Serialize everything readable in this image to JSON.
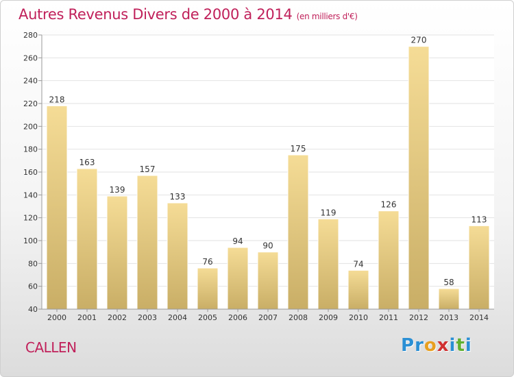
{
  "title": "Autres Revenus Divers de 2000 à 2014",
  "subtitle": "(en milliers d'€)",
  "commune": "CALLEN",
  "brand": {
    "letters": [
      "P",
      "r",
      "o",
      "x",
      "i",
      "t",
      "i"
    ],
    "colors": [
      "#2a8fd4",
      "#2a8fd4",
      "#e8a020",
      "#d03030",
      "#2a8fd4",
      "#60b030",
      "#2a8fd4"
    ]
  },
  "colors": {
    "title": "#c0205a",
    "bar_top": "#f5dc96",
    "bar_bottom": "#c9ae66",
    "grid": "#e2e2e2"
  },
  "chart_data": {
    "type": "bar",
    "title": "Autres Revenus Divers de 2000 à 2014",
    "categories": [
      "2000",
      "2001",
      "2002",
      "2003",
      "2004",
      "2005",
      "2006",
      "2007",
      "2008",
      "2009",
      "2010",
      "2011",
      "2012",
      "2013",
      "2014"
    ],
    "values": [
      218,
      163,
      139,
      157,
      133,
      76,
      94,
      90,
      175,
      119,
      74,
      126,
      270,
      58,
      113
    ],
    "ylim": [
      40,
      280
    ],
    "yticks": [
      40,
      60,
      80,
      100,
      120,
      140,
      160,
      180,
      200,
      220,
      240,
      260,
      280
    ],
    "grid": true
  }
}
